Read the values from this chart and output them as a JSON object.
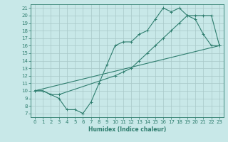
{
  "title": "",
  "xlabel": "Humidex (Indice chaleur)",
  "bg_color": "#c8e8e8",
  "line_color": "#2e7d6e",
  "grid_color": "#a8c8c8",
  "xlim": [
    -0.5,
    23.5
  ],
  "ylim": [
    6.5,
    21.5
  ],
  "xticks": [
    0,
    1,
    2,
    3,
    4,
    5,
    6,
    7,
    8,
    9,
    10,
    11,
    12,
    13,
    14,
    15,
    16,
    17,
    18,
    19,
    20,
    21,
    22,
    23
  ],
  "yticks": [
    7,
    8,
    9,
    10,
    11,
    12,
    13,
    14,
    15,
    16,
    17,
    18,
    19,
    20,
    21
  ],
  "line1_x": [
    0,
    1,
    2,
    3,
    4,
    5,
    6,
    7,
    8,
    9,
    10,
    11,
    12,
    13,
    14,
    15,
    16,
    17,
    18,
    19,
    20,
    21,
    22,
    23
  ],
  "line1_y": [
    10,
    10,
    9.5,
    9,
    7.5,
    7.5,
    7,
    8.5,
    11,
    13.5,
    16,
    16.5,
    16.5,
    17.5,
    18,
    19.5,
    21,
    20.5,
    21,
    20,
    19.5,
    17.5,
    16,
    16
  ],
  "line2_x": [
    0,
    1,
    2,
    3,
    10,
    11,
    12,
    13,
    14,
    15,
    16,
    17,
    18,
    19,
    20,
    21,
    22,
    23
  ],
  "line2_y": [
    10,
    10,
    9.5,
    9.5,
    12,
    12.5,
    13,
    14,
    15,
    16,
    17,
    18,
    19,
    20,
    20,
    20,
    20,
    16
  ],
  "line3_x": [
    0,
    23
  ],
  "line3_y": [
    10,
    16
  ]
}
